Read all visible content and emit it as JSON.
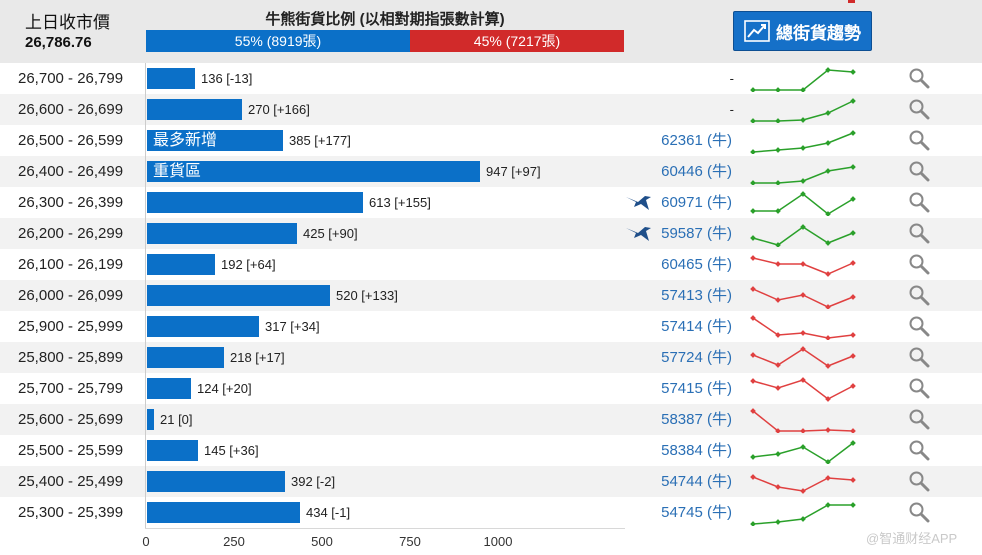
{
  "header": {
    "prev_close_label": "上日收市價",
    "prev_close_value": "26,786.76",
    "ratio_title": "牛熊街貨比例 (以相對期指張數計算)",
    "bull_ratio_text": "55% (8919張)",
    "bear_ratio_text": "45% (7217張)",
    "bull_ratio": 55,
    "trend_button_label": "總街貨趨勢"
  },
  "axis": {
    "ticks": [
      "0",
      "250",
      "500",
      "750",
      "1000"
    ],
    "max": 1000
  },
  "colors": {
    "bar": "#0b70c8",
    "bull_text": "#2a6fb5",
    "spark_up": "#2aa02a",
    "spark_down": "#e04040"
  },
  "rows": [
    {
      "range": "26,700 - 26,799",
      "value": 136,
      "count": "136 [-13]",
      "tag": "",
      "bull": "-",
      "bird": false,
      "trend": "up",
      "spark": [
        1,
        1,
        1,
        3,
        2.8
      ]
    },
    {
      "range": "26,600 - 26,699",
      "value": 270,
      "count": "270 [+166]",
      "tag": "",
      "bull": "-",
      "bird": false,
      "trend": "up",
      "spark": [
        1,
        1,
        1.1,
        1.8,
        3
      ]
    },
    {
      "range": "26,500 - 26,599",
      "value": 385,
      "count": "385 [+177]",
      "tag": "最多新增",
      "bull": "62361 (牛)",
      "bird": false,
      "trend": "up",
      "spark": [
        1,
        1.2,
        1.4,
        1.9,
        2.9
      ]
    },
    {
      "range": "26,400 - 26,499",
      "value": 947,
      "count": "947 [+97]",
      "tag": "重貨區",
      "bull": "60446 (牛)",
      "bird": false,
      "trend": "up",
      "spark": [
        1,
        1,
        1.2,
        2.2,
        2.6
      ]
    },
    {
      "range": "26,300 - 26,399",
      "value": 613,
      "count": "613 [+155]",
      "tag": "",
      "bull": "60971 (牛)",
      "bird": true,
      "trend": "up",
      "spark": [
        1.3,
        1.3,
        3,
        1,
        2.5
      ]
    },
    {
      "range": "26,200 - 26,299",
      "value": 425,
      "count": "425 [+90]",
      "tag": "",
      "bull": "59587 (牛)",
      "bird": true,
      "trend": "up",
      "spark": [
        1.7,
        1,
        2.8,
        1.2,
        2.2
      ]
    },
    {
      "range": "26,100 - 26,199",
      "value": 192,
      "count": "192 [+64]",
      "tag": "",
      "bull": "60465 (牛)",
      "bird": false,
      "trend": "down",
      "spark": [
        2.8,
        2.2,
        2.2,
        1.2,
        2.3
      ]
    },
    {
      "range": "26,000 - 26,099",
      "value": 520,
      "count": "520 [+133]",
      "tag": "",
      "bull": "57413 (牛)",
      "bird": false,
      "trend": "down",
      "spark": [
        2.8,
        1.7,
        2.2,
        1,
        2
      ]
    },
    {
      "range": "25,900 - 25,999",
      "value": 317,
      "count": "317 [+34]",
      "tag": "",
      "bull": "57414 (牛)",
      "bird": false,
      "trend": "down",
      "spark": [
        3,
        1.3,
        1.5,
        1,
        1.3
      ]
    },
    {
      "range": "25,800 - 25,899",
      "value": 218,
      "count": "218 [+17]",
      "tag": "",
      "bull": "57724 (牛)",
      "bird": false,
      "trend": "down",
      "spark": [
        2.4,
        1.4,
        3,
        1.3,
        2.3
      ]
    },
    {
      "range": "25,700 - 25,799",
      "value": 124,
      "count": "124 [+20]",
      "tag": "",
      "bull": "57415 (牛)",
      "bird": false,
      "trend": "down",
      "spark": [
        2.9,
        2.2,
        3,
        1.1,
        2.4
      ]
    },
    {
      "range": "25,600 - 25,699",
      "value": 21,
      "count": "21 [0]",
      "tag": "",
      "bull": "58387 (牛)",
      "bird": false,
      "trend": "down",
      "spark": [
        3,
        1,
        1,
        1.1,
        1
      ]
    },
    {
      "range": "25,500 - 25,599",
      "value": 145,
      "count": "145 [+36]",
      "tag": "",
      "bull": "58384 (牛)",
      "bird": false,
      "trend": "up",
      "spark": [
        1.5,
        1.8,
        2.5,
        1,
        2.9
      ]
    },
    {
      "range": "25,400 - 25,499",
      "value": 392,
      "count": "392 [-2]",
      "tag": "",
      "bull": "54744 (牛)",
      "bird": false,
      "trend": "down",
      "spark": [
        2.6,
        1.6,
        1.2,
        2.5,
        2.3
      ]
    },
    {
      "range": "25,300 - 25,399",
      "value": 434,
      "count": "434 [-1]",
      "tag": "",
      "bull": "54745 (牛)",
      "bird": false,
      "trend": "up",
      "spark": [
        1,
        1.2,
        1.5,
        2.9,
        2.9
      ]
    }
  ],
  "watermark": "@智通财经APP"
}
